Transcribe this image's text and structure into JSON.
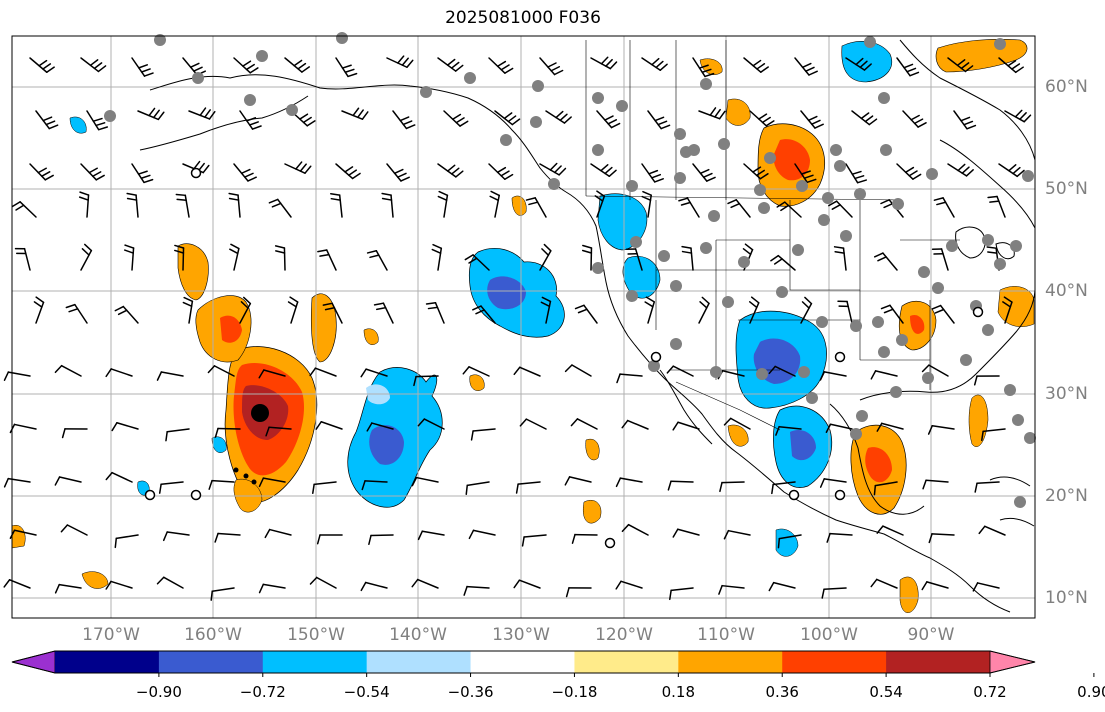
{
  "title": "2025081000 F036",
  "map": {
    "longitude_labels": [
      "170°W",
      "160°W",
      "150°W",
      "140°W",
      "130°W",
      "120°W",
      "110°W",
      "100°W",
      "90°W"
    ],
    "latitude_labels": [
      "60°N",
      "50°N",
      "40°N",
      "30°N",
      "20°N",
      "10°N"
    ],
    "colors": {
      "land_outline": "#000000",
      "grid": "#b0b0b0",
      "station_dot": "#808080"
    }
  },
  "colorbar": {
    "levels": [
      "−0.90",
      "−0.72",
      "−0.54",
      "−0.36",
      "−0.18",
      "0.18",
      "0.36",
      "0.54",
      "0.72",
      "0.90"
    ],
    "colors": [
      "#9b30d0",
      "#00008b",
      "#3a5bd0",
      "#00bfff",
      "#afe0ff",
      "#ffffff",
      "#ffeb8a",
      "#ffa500",
      "#ff4000",
      "#b22222",
      "#ff85aa"
    ]
  }
}
